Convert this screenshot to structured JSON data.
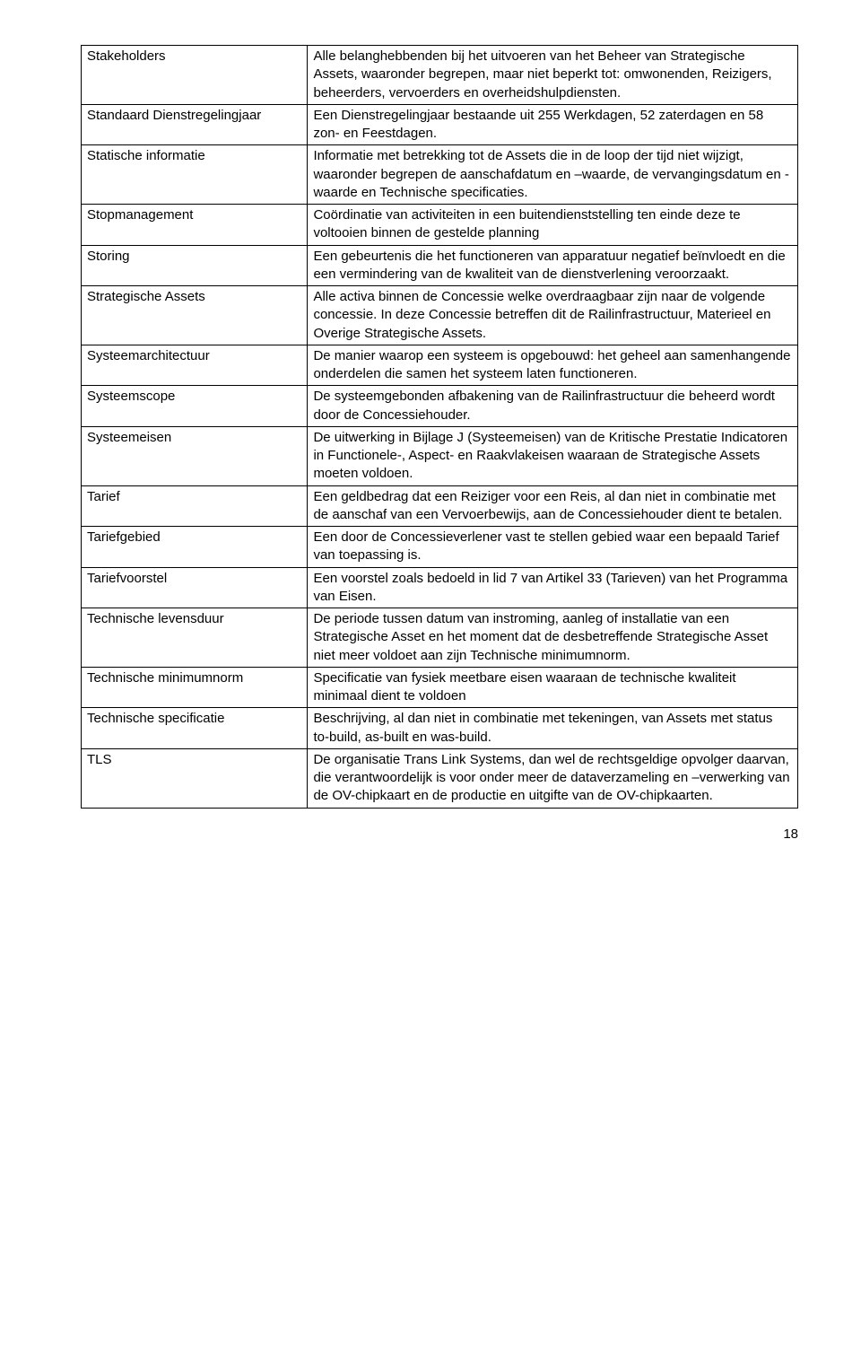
{
  "page_number": "18",
  "font": {
    "family": "Verdana, Tahoma, sans-serif",
    "size_pt": 11,
    "color": "#000000"
  },
  "table_border_color": "#000000",
  "background_color": "#ffffff",
  "col_widths_pct": [
    31,
    69
  ],
  "definitions": [
    {
      "term": "Stakeholders",
      "def": "Alle belanghebbenden bij het uitvoeren van het Beheer van Strategische Assets, waaronder begrepen, maar niet beperkt tot: omwonenden, Reizigers, beheerders, vervoerders en overheidshulpdiensten."
    },
    {
      "term": "Standaard Dienstregelingjaar",
      "def": "Een Dienstregelingjaar bestaande uit 255 Werkdagen, 52 zaterdagen en 58 zon- en Feestdagen."
    },
    {
      "term": "Statische informatie",
      "def": "Informatie met betrekking tot de Assets die in de loop der tijd niet wijzigt, waaronder begrepen de aanschafdatum en –waarde, de vervangingsdatum en -waarde en Technische specificaties."
    },
    {
      "term": "Stopmanagement",
      "def": "Coördinatie van activiteiten in een buitendienststelling ten einde deze te voltooien binnen de gestelde planning"
    },
    {
      "term": "Storing",
      "def": "Een gebeurtenis die het functioneren van apparatuur negatief beïnvloedt en die een vermindering van de kwaliteit van de dienstverlening veroorzaakt."
    },
    {
      "term": "Strategische Assets",
      "def": "Alle activa binnen de Concessie welke overdraagbaar zijn naar de volgende concessie. In deze Concessie betreffen dit de Railinfrastructuur, Materieel en Overige Strategische Assets."
    },
    {
      "term": "Systeemarchitectuur",
      "def": "De manier waarop een systeem is opgebouwd: het geheel aan samenhangende onderdelen die samen het systeem laten functioneren."
    },
    {
      "term": "Systeemscope",
      "def": "De systeemgebonden afbakening van de Railinfrastructuur die beheerd wordt door de Concessiehouder."
    },
    {
      "term": "Systeemeisen",
      "def": "De uitwerking in Bijlage J (Systeemeisen) van de Kritische Prestatie Indicatoren in Functionele-, Aspect- en Raakvlakeisen waaraan de Strategische Assets moeten voldoen."
    },
    {
      "term": "Tarief",
      "def": "Een geldbedrag dat een Reiziger voor een Reis, al dan niet in combinatie met de aanschaf van een Vervoerbewijs, aan de Concessiehouder dient te betalen."
    },
    {
      "term": "Tariefgebied",
      "def": "Een door de Concessieverlener vast te stellen gebied waar een bepaald Tarief van toepassing is."
    },
    {
      "term": "Tariefvoorstel",
      "def": "Een voorstel zoals bedoeld in lid 7 van Artikel 33 (Tarieven) van het Programma van Eisen."
    },
    {
      "term": "Technische levensduur",
      "def": "De periode tussen datum van instroming, aanleg of installatie van een Strategische Asset en het moment dat de desbetreffende Strategische Asset niet meer voldoet aan zijn Technische minimumnorm."
    },
    {
      "term": "Technische minimumnorm",
      "def": "Specificatie van fysiek meetbare eisen waaraan de technische kwaliteit minimaal dient te voldoen"
    },
    {
      "term": "Technische specificatie",
      "def": "Beschrijving, al dan niet in combinatie met tekeningen, van Assets met status to-build, as-built en was-build."
    },
    {
      "term": "TLS",
      "def": "De organisatie Trans Link Systems, dan wel de rechtsgeldige opvolger daarvan, die verantwoordelijk is voor onder meer de dataverzameling en –verwerking van de OV-chipkaart en de productie en uitgifte van de OV-chipkaarten."
    }
  ]
}
